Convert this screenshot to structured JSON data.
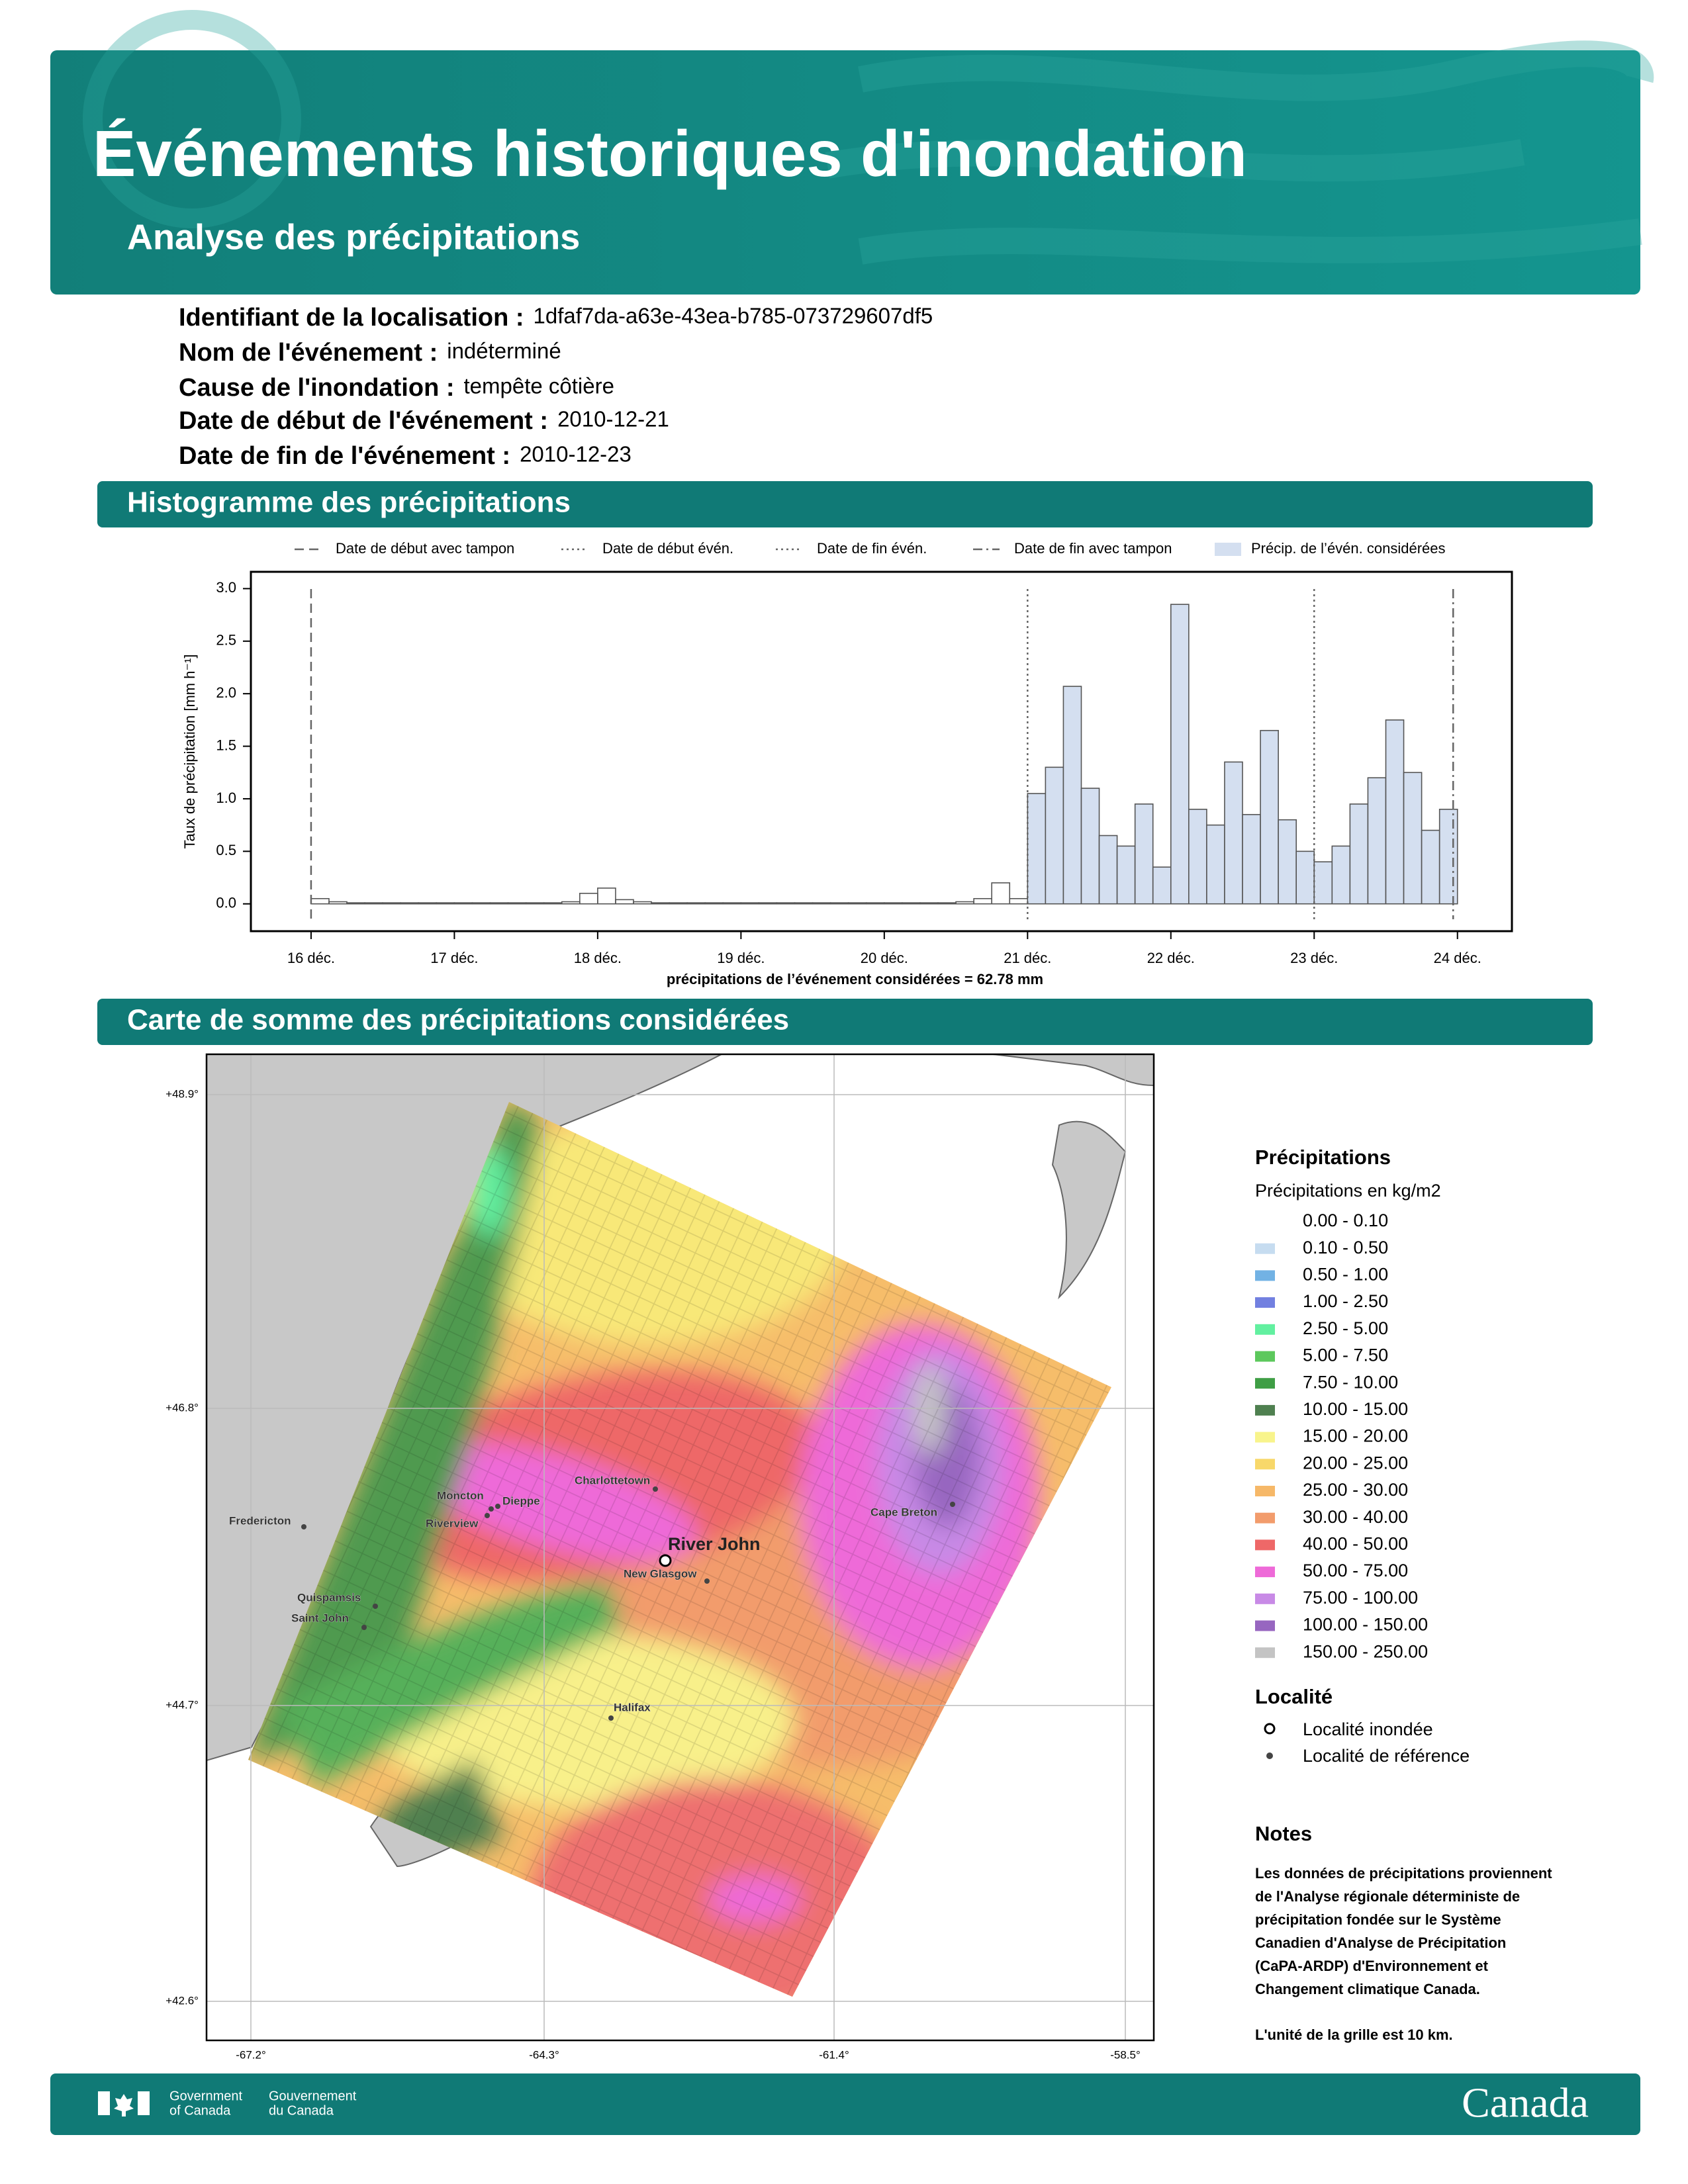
{
  "header": {
    "title": "Événements historiques d'inondation",
    "subtitle": "Analyse des précipitations"
  },
  "info": [
    {
      "label": "Identifiant de la localisation :",
      "value": "1dfaf7da-a63e-43ea-b785-073729607df5"
    },
    {
      "label": "Nom de l'événement :",
      "value": "indéterminé"
    },
    {
      "label": "Cause de l'inondation :",
      "value": "tempête côtière"
    },
    {
      "label": "Date de début de l'événement :",
      "value": "2010-12-21"
    },
    {
      "label": "Date de fin de l'événement :",
      "value": "2010-12-23"
    }
  ],
  "histogram_heading": "Histogramme des précipitations",
  "chart_data": {
    "type": "histogram",
    "y_label": "Taux de précipitation [mm h⁻¹]",
    "total_label": "précipitations de l’événement considérées = 62.78 mm",
    "bins": [
      16,
      16.125,
      16.25,
      16.375,
      16.5,
      16.625,
      16.75,
      16.875,
      17,
      17.125,
      17.25,
      17.375,
      17.5,
      17.625,
      17.75,
      17.875,
      18,
      18.125,
      18.25,
      18.375,
      18.5,
      18.625,
      18.75,
      18.875,
      19,
      19.125,
      19.25,
      19.375,
      19.5,
      19.625,
      19.75,
      19.875,
      20,
      20.125,
      20.25,
      20.375,
      20.5,
      20.625,
      20.75,
      20.875,
      21,
      21.125,
      21.25,
      21.375,
      21.5,
      21.625,
      21.75,
      21.875,
      22,
      22.125,
      22.25,
      22.375,
      22.5,
      22.625,
      22.75,
      22.875,
      23,
      23.125,
      23.25,
      23.375,
      23.5,
      23.625,
      23.75,
      23.875,
      24
    ],
    "values": [
      0.05,
      0.02,
      0.01,
      0.01,
      0.01,
      0.01,
      0.01,
      0.01,
      0.01,
      0.01,
      0.01,
      0.01,
      0.01,
      0.01,
      0.02,
      0.1,
      0.15,
      0.04,
      0.02,
      0.01,
      0.01,
      0.01,
      0.01,
      0.01,
      0.01,
      0.01,
      0.01,
      0.01,
      0.01,
      0.01,
      0.01,
      0.01,
      0.01,
      0.01,
      0.01,
      0.01,
      0.02,
      0.05,
      0.2,
      0.05,
      1.05,
      1.3,
      2.07,
      1.1,
      0.65,
      0.55,
      0.95,
      0.35,
      2.85,
      0.9,
      0.75,
      1.35,
      0.85,
      1.65,
      0.8,
      0.5,
      0.4,
      0.55,
      0.95,
      1.2,
      1.75,
      1.25,
      0.7,
      0.9
    ],
    "shaded": {
      "name": "Précip. de l’évén. considérées",
      "from": 21,
      "color": "#d4dff0"
    },
    "markers": [
      {
        "name": "Date de début avec tampon",
        "x": 16,
        "dash": "14 8"
      },
      {
        "name": "Date de début évén.",
        "x": 21,
        "dash": "3 5"
      },
      {
        "name": "Date de fin évén.",
        "x": 23,
        "dash": "3 5"
      },
      {
        "name": "Date de fin avec tampon",
        "x": 23.97,
        "dash": "14 6 3 6"
      }
    ],
    "xlim": [
      15.58,
      24.38
    ],
    "ylim": [
      -0.26,
      3.16
    ],
    "xticks": [
      {
        "value": 16,
        "label": "16 déc."
      },
      {
        "value": 17,
        "label": "17 déc."
      },
      {
        "value": 18,
        "label": "18 déc."
      },
      {
        "value": 19,
        "label": "19 déc."
      },
      {
        "value": 20,
        "label": "20 déc."
      },
      {
        "value": 21,
        "label": "21 déc."
      },
      {
        "value": 22,
        "label": "22 déc."
      },
      {
        "value": 23,
        "label": "23 déc."
      },
      {
        "value": 24,
        "label": "24 déc."
      }
    ],
    "yticks": [
      {
        "value": 0,
        "label": "0.0"
      },
      {
        "value": 0.5,
        "label": "0.5"
      },
      {
        "value": 1,
        "label": "1.0"
      },
      {
        "value": 1.5,
        "label": "1.5"
      },
      {
        "value": 2,
        "label": "2.0"
      },
      {
        "value": 2.5,
        "label": "2.5"
      },
      {
        "value": 3,
        "label": "3.0"
      }
    ]
  },
  "map": {
    "heading": "Carte de somme des précipitations considérées",
    "lat_labels": [
      "+48.9°",
      "+46.8°",
      "+44.7°",
      "+42.6°"
    ],
    "lon_labels": [
      "-67.2°",
      "-64.3°",
      "-61.4°",
      "-58.5°"
    ],
    "places": [
      "Moncton",
      "Dieppe",
      "Riverview",
      "Charlottetown",
      "Fredericton",
      "Cape Breton",
      "New Glasgow",
      "Quispamsis",
      "Saint John",
      "Halifax"
    ],
    "flooded_place": "River John"
  },
  "legend": {
    "title": "Précipitations",
    "subtitle": "Précipitations en kg/m2",
    "items": [
      {
        "label": "0.00 - 0.10",
        "color": "#ffffff"
      },
      {
        "label": "0.10 - 0.50",
        "color": "#c6dcf0"
      },
      {
        "label": "0.50 - 1.00",
        "color": "#72b2e4"
      },
      {
        "label": "1.00 - 2.50",
        "color": "#7280e0"
      },
      {
        "label": "2.50 - 5.00",
        "color": "#62f0a0"
      },
      {
        "label": "5.00 - 7.50",
        "color": "#5cc85c"
      },
      {
        "label": "7.50 - 10.00",
        "color": "#3f9e45"
      },
      {
        "label": "10.00 - 15.00",
        "color": "#4f8050"
      },
      {
        "label": "15.00 - 20.00",
        "color": "#f8f48c"
      },
      {
        "label": "20.00 - 25.00",
        "color": "#f8d86a"
      },
      {
        "label": "25.00 - 30.00",
        "color": "#f6b868"
      },
      {
        "label": "30.00 - 40.00",
        "color": "#f29c6c"
      },
      {
        "label": "40.00 - 50.00",
        "color": "#ee6868"
      },
      {
        "label": "50.00 - 75.00",
        "color": "#ee6ad8"
      },
      {
        "label": "75.00 - 100.00",
        "color": "#c88ae6"
      },
      {
        "label": "100.00 - 150.00",
        "color": "#9766c0"
      },
      {
        "label": "150.00 - 250.00",
        "color": "#c4c4c4"
      }
    ],
    "locality_title": "Localité",
    "flooded": "Localité inondée",
    "reference": "Localité de référence"
  },
  "notes": {
    "title": "Notes",
    "lines": [
      "Les données de précipitations proviennent",
      "de l'Analyse régionale déterministe de",
      "précipitation fondée sur le Système",
      "Canadien d'Analyse de Précipitation",
      "(CaPA-ARDP) d'Environnement et",
      "Changement climatique Canada."
    ],
    "grid": "L'unité de la grille est 10 km."
  },
  "footer": {
    "gov_en_1": "Government",
    "gov_en_2": "of Canada",
    "gov_fr_1": "Gouvernement",
    "gov_fr_2": "du Canada",
    "wordmark": "Canada"
  }
}
